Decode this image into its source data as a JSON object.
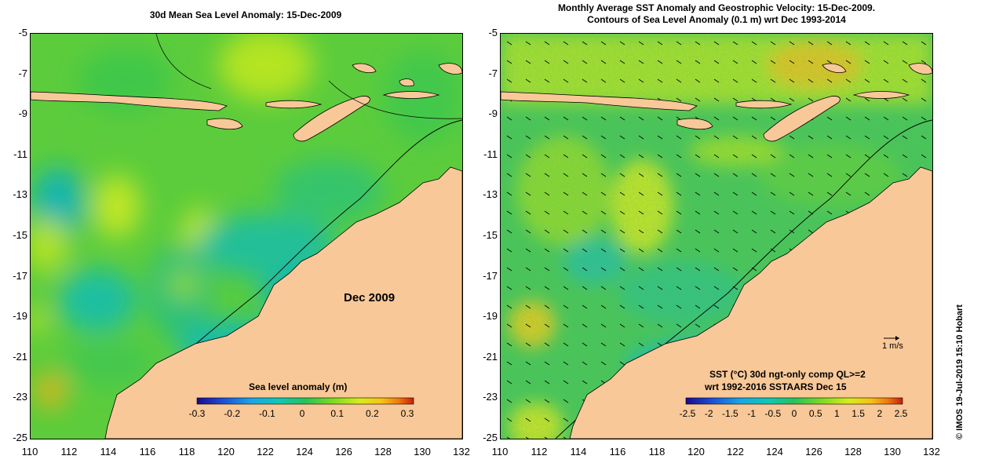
{
  "left_panel": {
    "title": "30d Mean Sea Level Anomaly: 15-Dec-2009",
    "date_label": "Dec 2009",
    "colorbar": {
      "title": "Sea level anomaly (m)",
      "ticks": [
        "-0.3",
        "-0.2",
        "-0.1",
        "0",
        "0.1",
        "0.2",
        "0.3"
      ]
    }
  },
  "right_panel": {
    "title_line1": "Monthly Average SST Anomaly  and Geostrophic Velocity: 15-Dec-2009.",
    "title_line2": "Contours of Sea Level Anomaly (0.1 m) wrt Dec 1993-2014",
    "velocity_label": "1 m/s",
    "colorbar": {
      "title_line1": "SST (°C) 30d ngt-only comp QL>=2",
      "title_line2": "wrt 1992-2016 SSTAARS Dec 15",
      "ticks": [
        "-2.5",
        "-2",
        "-1.5",
        "-1",
        "-0.5",
        "0",
        "0.5",
        "1",
        "1.5",
        "2",
        "2.5"
      ]
    }
  },
  "axes": {
    "lat_ticks": [
      "-5",
      "-7",
      "-9",
      "-11",
      "-13",
      "-15",
      "-17",
      "-19",
      "-21",
      "-23",
      "-25"
    ],
    "lon_ticks": [
      "110",
      "112",
      "114",
      "116",
      "118",
      "120",
      "122",
      "124",
      "126",
      "128",
      "130",
      "132"
    ]
  },
  "credit": "© IMOS 19-Jul-2019 15:10 Hobart",
  "colors": {
    "land": "#f8c898",
    "colormap": [
      "#1a0a8c",
      "#1d4fd6",
      "#19a6e6",
      "#10c8b4",
      "#27c25a",
      "#79d923",
      "#d6ec1b",
      "#f6c417",
      "#f07a10",
      "#c61f0a"
    ]
  }
}
